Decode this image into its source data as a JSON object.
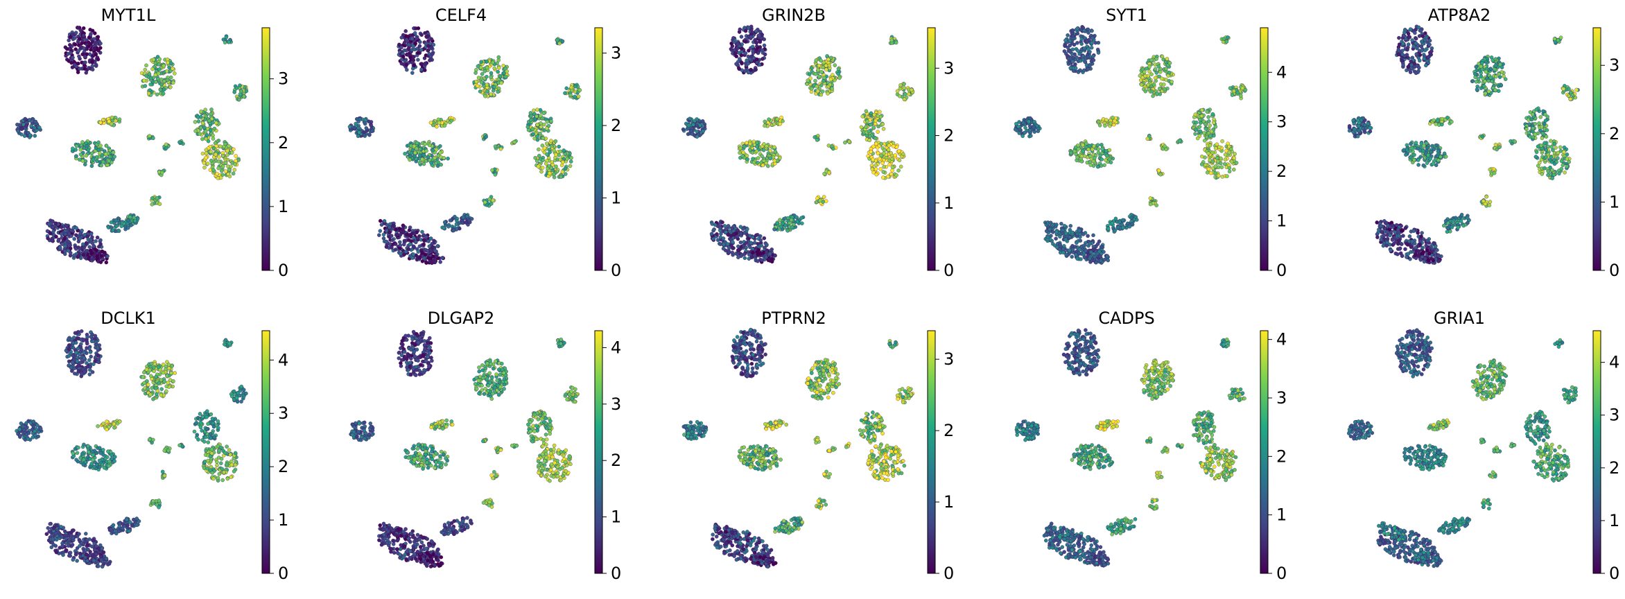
{
  "figure": {
    "colormap": "viridis",
    "colormap_stops": [
      "#440154",
      "#414487",
      "#2a788e",
      "#22a884",
      "#7ad151",
      "#fde725"
    ],
    "point_edge_color": "#440154",
    "background": "#ffffff"
  },
  "chart_data": [
    {
      "type": "scatter",
      "title": "MYT1L",
      "xlabel": "",
      "ylabel": "",
      "colorbar": {
        "vmin": 0,
        "vmax": 3.8,
        "ticks": [
          0,
          1,
          2,
          3
        ]
      },
      "cluster_expression": [
        0.4,
        2.9,
        3.3,
        2.5,
        2.8,
        3.2,
        1.2,
        2.8,
        2.4,
        2.6,
        2.7,
        2.6,
        2.7,
        2.7,
        0.8,
        0.5,
        0.3,
        2.0
      ]
    },
    {
      "type": "scatter",
      "title": "CELF4",
      "xlabel": "",
      "ylabel": "",
      "colorbar": {
        "vmin": 0,
        "vmax": 3.35,
        "ticks": [
          0,
          1,
          2,
          3
        ]
      },
      "cluster_expression": [
        0.5,
        2.6,
        2.9,
        2.2,
        2.4,
        2.6,
        1.2,
        2.5,
        2.2,
        2.3,
        2.5,
        2.3,
        2.4,
        2.4,
        0.7,
        0.6,
        0.3,
        1.2
      ]
    },
    {
      "type": "scatter",
      "title": "GRIN2B",
      "xlabel": "",
      "ylabel": "",
      "colorbar": {
        "vmin": 0,
        "vmax": 3.6,
        "ticks": [
          0,
          1,
          2,
          3
        ]
      },
      "cluster_expression": [
        0.7,
        2.8,
        3.2,
        2.8,
        2.9,
        3.4,
        1.3,
        2.9,
        2.6,
        2.8,
        3.1,
        2.8,
        3.0,
        3.2,
        0.9,
        0.8,
        0.5,
        2.2
      ]
    },
    {
      "type": "scatter",
      "title": "SYT1",
      "xlabel": "",
      "ylabel": "",
      "colorbar": {
        "vmin": 0,
        "vmax": 4.9,
        "ticks": [
          0,
          1,
          2,
          3,
          4
        ]
      },
      "cluster_expression": [
        1.6,
        3.9,
        4.3,
        3.6,
        3.7,
        4.2,
        2.0,
        3.8,
        3.5,
        3.9,
        4.3,
        3.7,
        4.0,
        4.2,
        1.8,
        1.9,
        1.4,
        2.3
      ]
    },
    {
      "type": "scatter",
      "title": "ATP8A2",
      "xlabel": "",
      "ylabel": "",
      "colorbar": {
        "vmin": 0,
        "vmax": 3.55,
        "ticks": [
          0,
          1,
          2,
          3
        ]
      },
      "cluster_expression": [
        0.9,
        2.3,
        2.6,
        2.1,
        2.3,
        2.6,
        1.3,
        2.8,
        2.3,
        2.5,
        2.9,
        2.5,
        2.8,
        3.2,
        0.8,
        0.6,
        0.4,
        1.8
      ]
    },
    {
      "type": "scatter",
      "title": "DCLK1",
      "xlabel": "",
      "ylabel": "",
      "colorbar": {
        "vmin": 0,
        "vmax": 4.55,
        "ticks": [
          0,
          1,
          2,
          3,
          4
        ]
      },
      "cluster_expression": [
        1.2,
        3.6,
        4.0,
        2.6,
        2.5,
        3.5,
        1.6,
        2.4,
        2.8,
        3.1,
        3.0,
        2.9,
        3.0,
        3.3,
        1.0,
        1.2,
        0.9,
        1.4
      ]
    },
    {
      "type": "scatter",
      "title": "DLGAP2",
      "xlabel": "",
      "ylabel": "",
      "colorbar": {
        "vmin": 0,
        "vmax": 4.3,
        "ticks": [
          0,
          1,
          2,
          3,
          4
        ]
      },
      "cluster_expression": [
        0.8,
        3.0,
        3.5,
        2.9,
        3.2,
        3.6,
        1.5,
        3.2,
        2.6,
        3.3,
        3.6,
        3.1,
        3.4,
        3.7,
        0.9,
        0.6,
        0.4,
        1.1
      ]
    },
    {
      "type": "scatter",
      "title": "PTPRN2",
      "xlabel": "",
      "ylabel": "",
      "colorbar": {
        "vmin": 0,
        "vmax": 3.4,
        "ticks": [
          0,
          1,
          2,
          3
        ]
      },
      "cluster_expression": [
        0.9,
        2.8,
        3.0,
        2.4,
        2.7,
        3.0,
        1.6,
        2.7,
        2.4,
        2.6,
        3.0,
        2.8,
        2.9,
        3.1,
        0.9,
        0.7,
        0.4,
        2.3
      ]
    },
    {
      "type": "scatter",
      "title": "CADPS",
      "xlabel": "",
      "ylabel": "",
      "colorbar": {
        "vmin": 0,
        "vmax": 4.15,
        "ticks": [
          0,
          1,
          2,
          3,
          4
        ]
      },
      "cluster_expression": [
        1.3,
        3.3,
        3.8,
        2.7,
        2.9,
        3.4,
        1.9,
        3.0,
        2.6,
        3.1,
        3.5,
        3.0,
        3.3,
        3.6,
        1.5,
        1.7,
        1.2,
        2.6
      ]
    },
    {
      "type": "scatter",
      "title": "GRIA1",
      "xlabel": "",
      "ylabel": "",
      "colorbar": {
        "vmin": 0,
        "vmax": 4.6,
        "ticks": [
          0,
          1,
          2,
          3,
          4
        ]
      },
      "cluster_expression": [
        1.5,
        3.4,
        3.7,
        2.4,
        2.6,
        3.2,
        1.8,
        2.9,
        2.5,
        3.0,
        3.2,
        2.8,
        3.0,
        3.4,
        1.5,
        2.4,
        1.8,
        2.4
      ]
    }
  ]
}
